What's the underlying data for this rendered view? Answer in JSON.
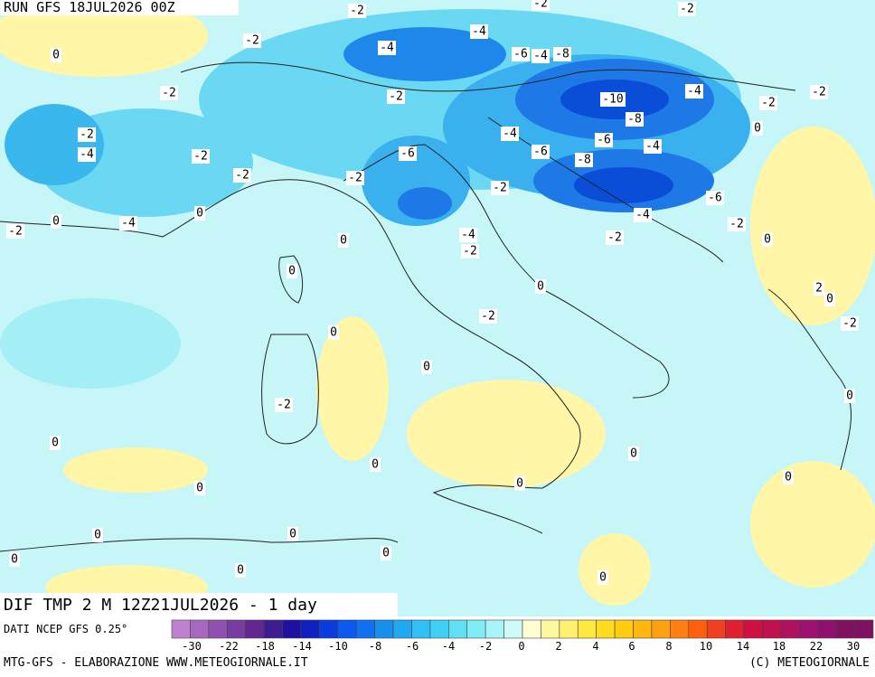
{
  "header": {
    "run": "RUN GFS 18JUL2026 00Z"
  },
  "map": {
    "title": "DIF TMP 2 M 12Z21JUL2026 - 1 day",
    "contour_labels": [
      "-2",
      "-2",
      "-2",
      "-4",
      "-4",
      "-6",
      "-4",
      "-8",
      "-2",
      "0",
      "-2",
      "-2",
      "-10",
      "-8",
      "-4",
      "-2",
      "-2",
      "-2",
      "-4",
      "-2",
      "-2",
      "-2",
      "-6",
      "-4",
      "-6",
      "-6",
      "-4",
      "-8",
      "0",
      "-2",
      "-6",
      "-4",
      "-2",
      "-2",
      "0",
      "-4",
      "0",
      "-4",
      "-2",
      "-2",
      "0",
      "0",
      "0",
      "0",
      "2",
      "0",
      "-2",
      "-2",
      "0",
      "0",
      "0",
      "-2",
      "0",
      "0",
      "0",
      "0",
      "0",
      "0",
      "0",
      "0",
      "0",
      "0",
      "0",
      "0"
    ]
  },
  "colorbar": {
    "labels": [
      "-30",
      "-22",
      "-18",
      "-14",
      "-10",
      "-8",
      "-6",
      "-4",
      "-2",
      "0",
      "2",
      "4",
      "6",
      "8",
      "10",
      "14",
      "18",
      "22",
      "30"
    ]
  },
  "footer": {
    "source": "DATI NCEP GFS 0.25°",
    "credit": "MTG-GFS - ELABORAZIONE WWW.METEOGIORNALE.IT",
    "copyright": "(C) METEOGIORNALE"
  }
}
